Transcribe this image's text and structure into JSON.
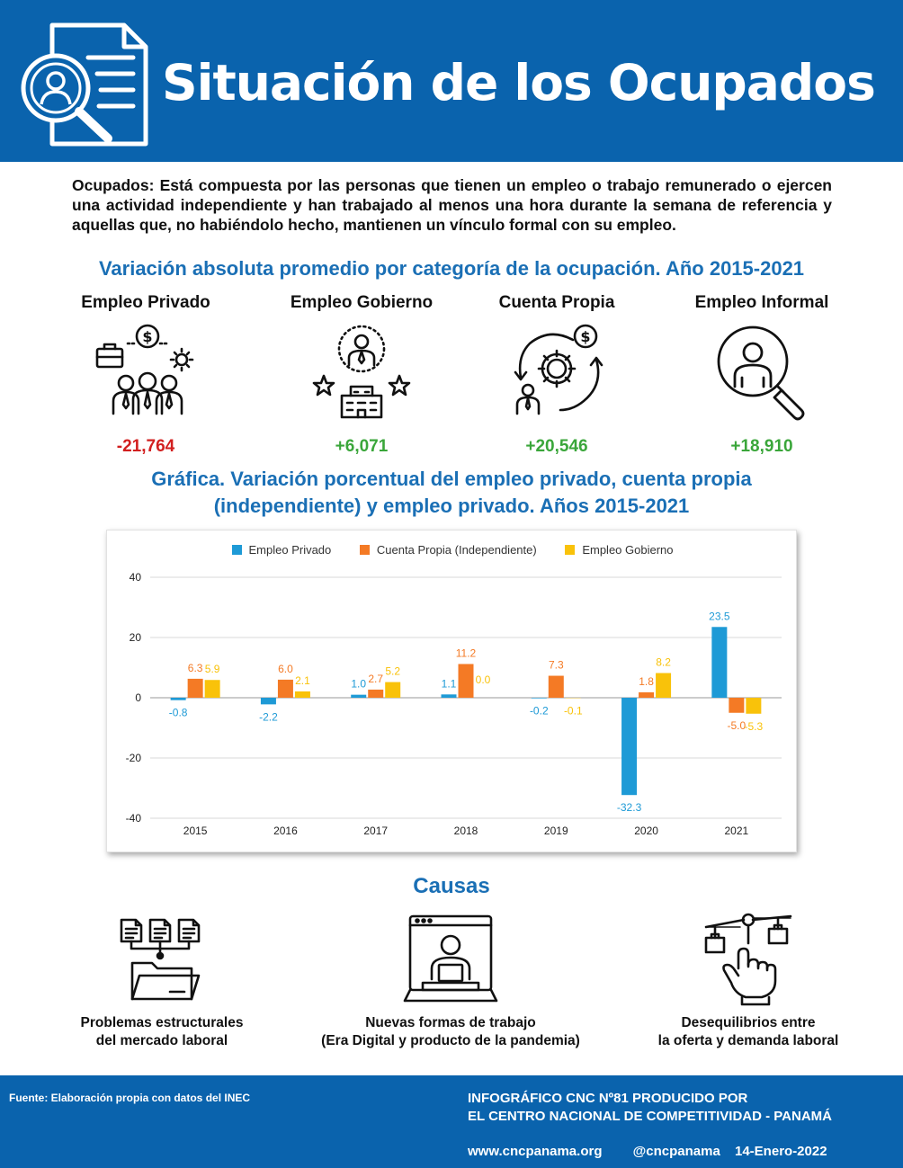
{
  "header": {
    "title": "Situación de los Ocupados",
    "icon": "document-search-person-icon"
  },
  "definition": "Ocupados: Está compuesta por las personas que tienen un empleo o trabajo remunerado o ejercen una actividad independiente y han trabajado al menos una hora durante la semana de referencia y aquellas que, no habiéndolo hecho, mantienen un vínculo formal con su empleo.",
  "section_categories": {
    "title": "Variación absoluta promedio por categoría de la ocupación. Año 2015-2021",
    "items": [
      {
        "name": "Empleo Privado",
        "value": "-21,764",
        "icon": "business-team-icon",
        "status": "negative"
      },
      {
        "name": "Empleo Gobierno",
        "value": "+6,071",
        "icon": "government-employee-icon",
        "status": "positive"
      },
      {
        "name": "Cuenta Propia",
        "value": "+20,546",
        "icon": "self-employed-cycle-icon",
        "status": "positive"
      },
      {
        "name": "Empleo Informal",
        "value": "+18,910",
        "icon": "magnifier-person-icon",
        "status": "positive"
      }
    ]
  },
  "chart_section": {
    "title_line1": "Gráfica. Variación porcentual del empleo privado, cuenta propia",
    "title_line2": "(independiente) y empleo privado.  Años 2015-2021"
  },
  "chart_data": {
    "type": "bar",
    "categories": [
      "2015",
      "2016",
      "2017",
      "2018",
      "2019",
      "2020",
      "2021"
    ],
    "series": [
      {
        "name": "Empleo Privado",
        "color": "#1e9ad6",
        "values": [
          -0.8,
          -2.2,
          1.0,
          1.1,
          -0.2,
          -32.3,
          23.5
        ],
        "labels": [
          "-0.8",
          "-2.2",
          "1.0",
          "1.1",
          "-0.2",
          "-32.3",
          "23.5"
        ]
      },
      {
        "name": "Cuenta Propia (Independiente)",
        "color": "#f47a25",
        "values": [
          6.3,
          6.0,
          2.7,
          11.2,
          7.3,
          1.8,
          -5.0
        ],
        "labels": [
          "6.3",
          "6.0",
          "2.7",
          "11.2",
          "7.3",
          "1.8",
          "-5.0"
        ]
      },
      {
        "name": "Empleo Gobierno",
        "color": "#f9c20a",
        "values": [
          5.9,
          2.1,
          5.2,
          0.0,
          -0.1,
          8.2,
          -5.3
        ],
        "labels": [
          "5.9",
          "2.1",
          "5.2",
          "0.0",
          "-0.1",
          "8.2",
          "-5.3"
        ]
      }
    ],
    "yticks": [
      "40",
      "20",
      "0",
      "-20",
      "-40"
    ],
    "ylim": [
      -40,
      40
    ],
    "grid": "horizontal",
    "legend": "top"
  },
  "causes": {
    "title": "Causas",
    "items": [
      {
        "line1": "Problemas estructurales",
        "line2": "del mercado laboral",
        "icon": "documents-folder-icon"
      },
      {
        "line1": "Nuevas formas de trabajo",
        "line2": "(Era Digital y producto de la pandemia)",
        "icon": "remote-work-screen-icon"
      },
      {
        "line1": "Desequilibrios entre",
        "line2": "la oferta y demanda laboral",
        "icon": "hand-balance-icon"
      }
    ]
  },
  "footer": {
    "source": "Fuente: Elaboración propia con datos del INEC",
    "credit_line1": "INFOGRÁFICO CNC Nº81 PRODUCIDO POR",
    "credit_line2": "EL CENTRO NACIONAL DE COMPETITIVIDAD - PANAMÁ",
    "website": "www.cncpanama.org",
    "handle": "@cncpanama",
    "date": "14-Enero-2022"
  },
  "colors": {
    "brand_blue": "#0a63ad",
    "title_blue": "#1a6fb5",
    "negative": "#d21f1f",
    "positive": "#3aa63a"
  }
}
